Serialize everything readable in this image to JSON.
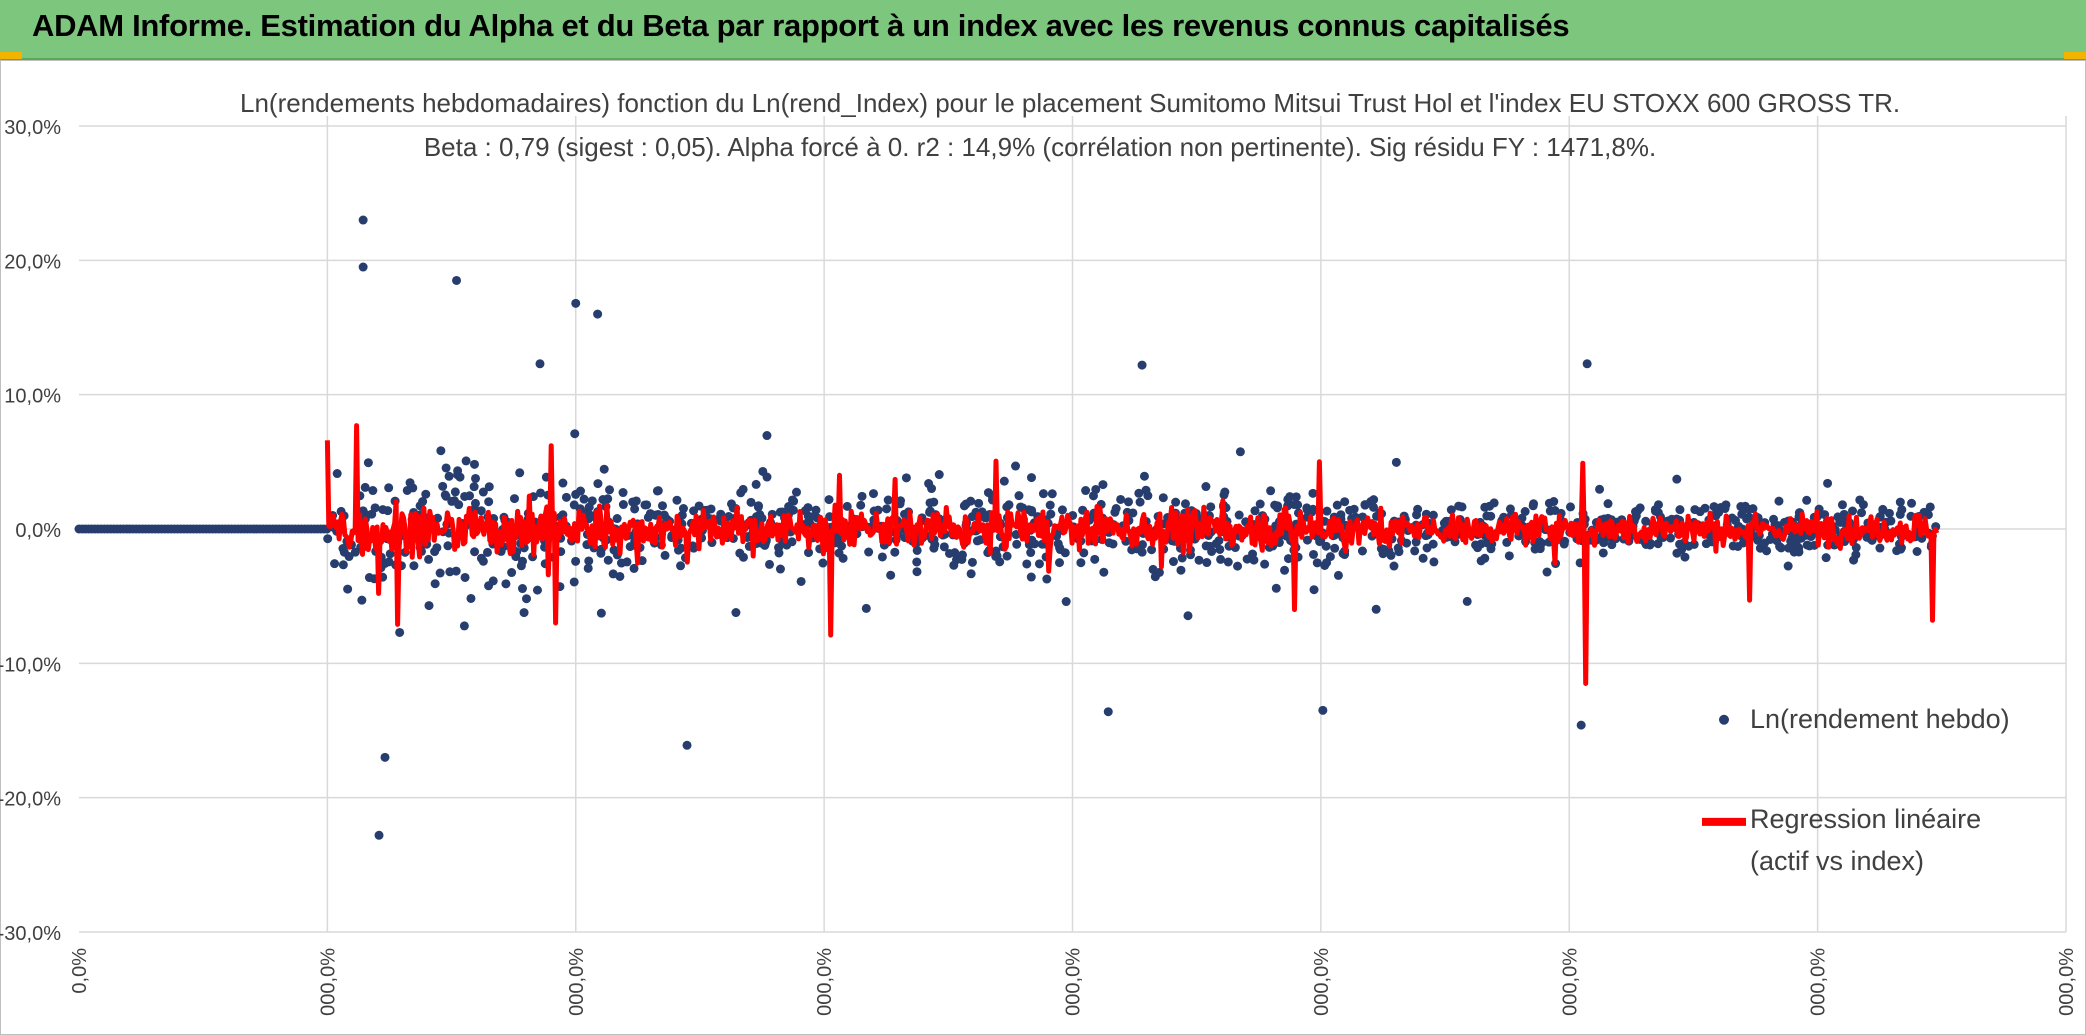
{
  "header": {
    "title": "ADAM Informe. Estimation du Alpha et du Beta par rapport à un index avec les revenus connus capitalisés"
  },
  "colors": {
    "banner": "#7dc67d",
    "scatter": "#263d6e",
    "regression": "#ff0000",
    "grid": "#d9d9d9",
    "text": "#404040"
  },
  "chart_data": {
    "type": "scatter",
    "title": "Ln(rendements hebdomadaires) fonction du Ln(rend_Index) pour le placement Sumitomo Mitsui Trust Hol et l'index EU STOXX 600 GROSS TR.",
    "subtitle": "Beta : 0,79 (sigest : 0,05). Alpha forcé à 0. r2 : 14,9% (corrélation non pertinente). Sig résidu FY : 1471,8%.",
    "ylim": [
      -30,
      30
    ],
    "y_ticks": [
      30,
      20,
      10,
      0,
      -10,
      -20,
      -30
    ],
    "y_tick_labels": [
      "30,0%",
      "20,0%",
      "10,0%",
      "0,0%",
      "-10,0%",
      "-20,0%",
      "-30,0%"
    ],
    "x_tick_labels": [
      "0,0%",
      "000,0%",
      "000,0%",
      "000,0%",
      "000,0%",
      "000,0%",
      "000,0%",
      "000,0%",
      "000,0%"
    ],
    "grid": true,
    "legend_position": "right",
    "series": [
      {
        "name": "Ln(rendement hebdo)",
        "kind": "markers",
        "points_summary": "Zero-valued block over the first segment, then weekly log returns mostly between -10% and +10%",
        "extremes": [
          [
            0.143,
            23.0
          ],
          [
            0.143,
            19.5
          ],
          [
            0.19,
            18.5
          ],
          [
            0.151,
            -22.8
          ],
          [
            0.154,
            -17.0
          ],
          [
            0.232,
            12.3
          ],
          [
            0.25,
            16.8
          ],
          [
            0.261,
            16.0
          ],
          [
            0.306,
            -16.1
          ],
          [
            0.759,
            12.3
          ],
          [
            0.756,
            -14.6
          ],
          [
            0.535,
            12.2
          ],
          [
            0.518,
            -13.6
          ],
          [
            0.626,
            -13.5
          ]
        ]
      },
      {
        "name": "Regression linéaire (actif vs index)",
        "legend_label_lines": [
          "Regression linéaire",
          "(actif vs index)"
        ],
        "kind": "line",
        "spikes": [
          [
            0.112,
            6.6
          ],
          [
            0.14,
            7.7
          ],
          [
            0.151,
            -4.8
          ],
          [
            0.16,
            -7.1
          ],
          [
            0.238,
            6.2
          ],
          [
            0.24,
            -7.0
          ],
          [
            0.378,
            -7.9
          ],
          [
            0.383,
            4.0
          ],
          [
            0.612,
            -6.0
          ],
          [
            0.624,
            5.0
          ],
          [
            0.757,
            4.9
          ],
          [
            0.758,
            -11.5
          ],
          [
            0.841,
            -5.3
          ],
          [
            0.933,
            -6.8
          ]
        ]
      }
    ]
  }
}
